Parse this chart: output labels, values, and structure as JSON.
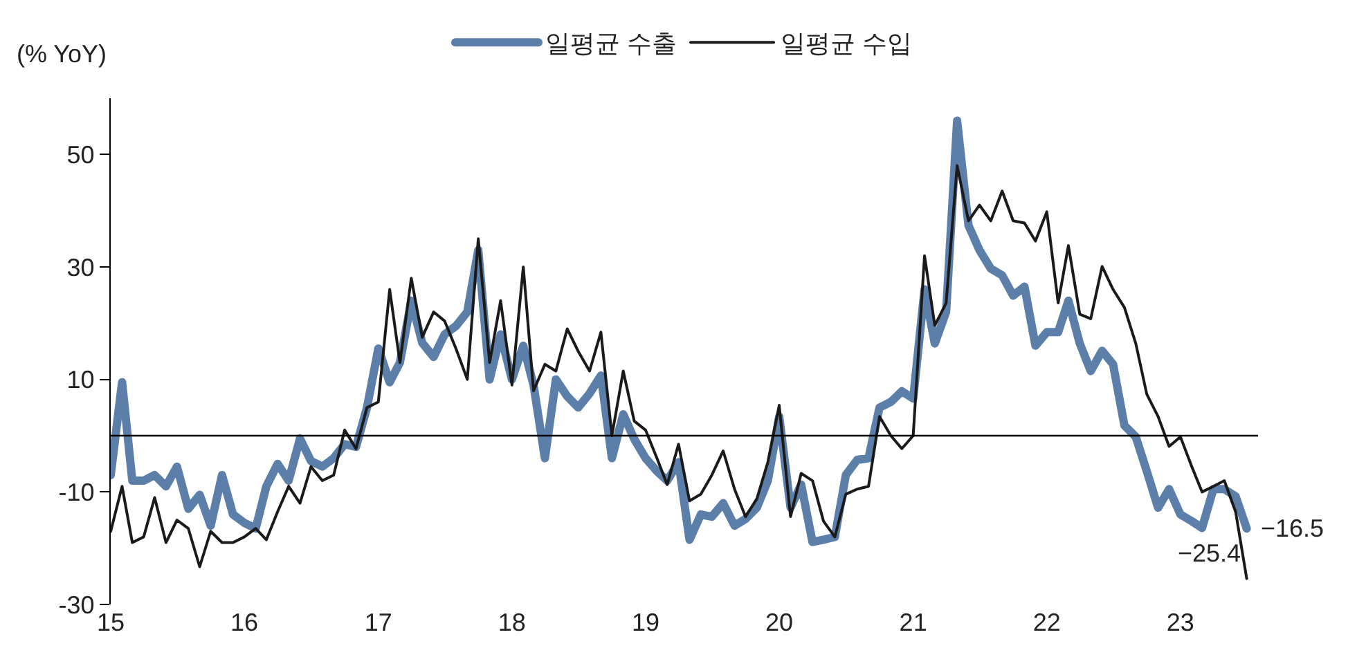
{
  "chart_data": {
    "type": "line",
    "ylabel": "(% YoY)",
    "x": [
      "2015-01",
      "2015-02",
      "2015-03",
      "2015-04",
      "2015-05",
      "2015-06",
      "2015-07",
      "2015-08",
      "2015-09",
      "2015-10",
      "2015-11",
      "2015-12",
      "2016-01",
      "2016-02",
      "2016-03",
      "2016-04",
      "2016-05",
      "2016-06",
      "2016-07",
      "2016-08",
      "2016-09",
      "2016-10",
      "2016-11",
      "2016-12",
      "2017-01",
      "2017-02",
      "2017-03",
      "2017-04",
      "2017-05",
      "2017-06",
      "2017-07",
      "2017-08",
      "2017-09",
      "2017-10",
      "2017-11",
      "2017-12",
      "2018-01",
      "2018-02",
      "2018-03",
      "2018-04",
      "2018-05",
      "2018-06",
      "2018-07",
      "2018-08",
      "2018-09",
      "2018-10",
      "2018-11",
      "2018-12",
      "2019-01",
      "2019-02",
      "2019-03",
      "2019-04",
      "2019-05",
      "2019-06",
      "2019-07",
      "2019-08",
      "2019-09",
      "2019-10",
      "2019-11",
      "2019-12",
      "2020-01",
      "2020-02",
      "2020-03",
      "2020-04",
      "2020-05",
      "2020-06",
      "2020-07",
      "2020-08",
      "2020-09",
      "2020-10",
      "2020-11",
      "2020-12",
      "2021-01",
      "2021-02",
      "2021-03",
      "2021-04",
      "2021-05",
      "2021-06",
      "2021-07",
      "2021-08",
      "2021-09",
      "2021-10",
      "2021-11",
      "2021-12",
      "2022-01",
      "2022-02",
      "2022-03",
      "2022-04",
      "2022-05",
      "2022-06",
      "2022-07",
      "2022-08",
      "2022-09",
      "2022-10",
      "2022-11",
      "2022-12",
      "2023-01",
      "2023-02",
      "2023-03",
      "2023-04",
      "2023-05",
      "2023-06",
      "2023-07"
    ],
    "series": [
      {
        "name": "일평균 수출",
        "color": "#5b7fa8",
        "values": [
          -7,
          9.5,
          -8,
          -8,
          -7,
          -9,
          -5.5,
          -13,
          -10.5,
          -16,
          -7,
          -14,
          -15.5,
          -16.5,
          -9,
          -5,
          -8,
          -0.5,
          -4.5,
          -5.5,
          -4,
          -1.5,
          -2,
          5,
          15.5,
          9.5,
          13,
          24,
          16.5,
          14,
          18,
          19.5,
          22,
          33,
          10,
          18,
          10,
          16,
          9,
          -4,
          10,
          7,
          5,
          7.5,
          10.7,
          -4,
          3.8,
          -0.6,
          -4,
          -6.3,
          -8,
          -4.7,
          -18.5,
          -14,
          -14.4,
          -12,
          -16,
          -14.8,
          -12.8,
          -8,
          3.4,
          -12.8,
          -8.7,
          -18.9,
          -18.5,
          -18,
          -7,
          -4.3,
          -4,
          5,
          6,
          7.9,
          6.6,
          26,
          16.4,
          22,
          56,
          37.4,
          33,
          29.7,
          28.5,
          24.9,
          26.5,
          16,
          18.4,
          18.4,
          24,
          16.4,
          11.5,
          15.1,
          12.7,
          1.8,
          -0.2,
          -6.3,
          -12.8,
          -9.5,
          -14,
          -15.2,
          -16.4,
          -9.5,
          -9.5,
          -10.8,
          -16.5
        ]
      },
      {
        "name": "일평균 수입",
        "color": "#1a1a1a",
        "values": [
          -17,
          -9,
          -19,
          -18,
          -11,
          -19,
          -15,
          -16.5,
          -23.3,
          -17,
          -19,
          -19,
          -18,
          -16.5,
          -18.5,
          -13.5,
          -9,
          -12,
          -5.5,
          -8,
          -7,
          1,
          -2.3,
          5,
          6,
          26,
          13,
          28,
          17.5,
          22,
          20.4,
          15.5,
          10,
          35,
          13,
          24,
          9,
          30,
          8,
          12.7,
          11.5,
          19,
          15,
          11.5,
          18.4,
          0,
          11.5,
          2.6,
          1,
          -4,
          -8.7,
          -1.5,
          -11.6,
          -10.4,
          -7,
          -2.7,
          -9.5,
          -14.4,
          -11.2,
          -4.7,
          5.4,
          -14.4,
          -6.7,
          -8,
          -15.2,
          -18,
          -10.4,
          -9.5,
          -9,
          3.4,
          0,
          -2.3,
          0,
          32,
          19.6,
          23.6,
          48,
          38.2,
          41,
          38.2,
          43.5,
          38.2,
          37.8,
          34.6,
          39.8,
          23.6,
          33.8,
          21.6,
          20.8,
          30.1,
          26,
          22.8,
          16.4,
          7.4,
          3.4,
          -1.9,
          -0.2,
          -5.5,
          -10,
          -9,
          -8,
          -13.6,
          -25.4
        ]
      }
    ],
    "xlim": [
      "2015-01",
      "2023-08"
    ],
    "xticks": [
      {
        "value": "2015-01",
        "label": "15"
      },
      {
        "value": "2016-01",
        "label": "16"
      },
      {
        "value": "2017-01",
        "label": "17"
      },
      {
        "value": "2018-01",
        "label": "18"
      },
      {
        "value": "2019-01",
        "label": "19"
      },
      {
        "value": "2020-01",
        "label": "20"
      },
      {
        "value": "2021-01",
        "label": "21"
      },
      {
        "value": "2022-01",
        "label": "22"
      },
      {
        "value": "2023-01",
        "label": "23"
      }
    ],
    "ylim": [
      -30,
      60
    ],
    "yticks": [
      -30,
      -10,
      10,
      30,
      50
    ],
    "ref_lines": [
      {
        "axis": "y",
        "value": 0,
        "color": "#000000"
      }
    ],
    "annotations": [
      {
        "text": "−16.5",
        "x": "2023-07",
        "y": -16.5
      },
      {
        "text": "−25.4",
        "x": "2023-07",
        "y": -25.4
      }
    ],
    "legend": "top",
    "grid": false,
    "marker": "none",
    "line_style": "solid"
  }
}
